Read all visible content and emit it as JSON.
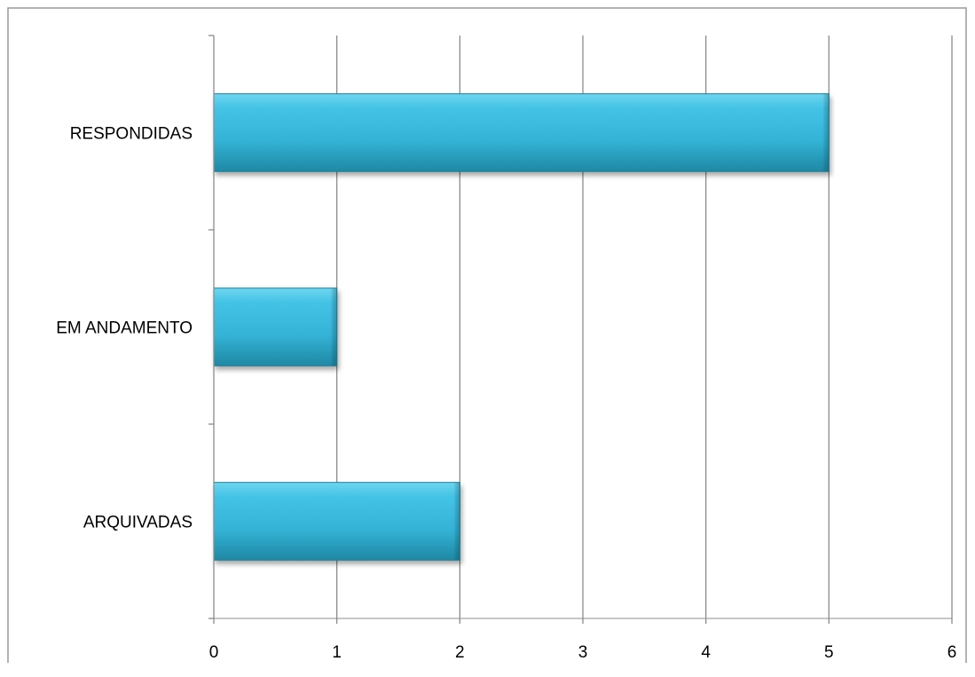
{
  "chart_data": {
    "type": "bar",
    "orientation": "horizontal",
    "categories": [
      "RESPONDIDAS",
      "EM ANDAMENTO",
      "ARQUIVADAS"
    ],
    "values": [
      5,
      1,
      2
    ],
    "xlim": [
      0,
      6
    ],
    "xticks": [
      "0",
      "1",
      "2",
      "3",
      "4",
      "5",
      "6"
    ],
    "grid": "vertical",
    "legend": "none",
    "bar_color": "#3bbde0",
    "bar_edge_color": "#1e7f96"
  }
}
